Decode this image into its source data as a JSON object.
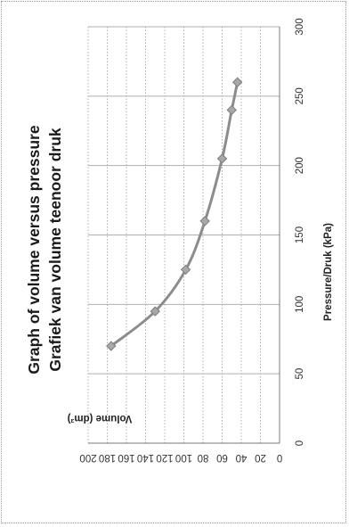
{
  "chart_data": {
    "type": "line",
    "title": "Graph of volume versus pressure",
    "subtitle": "Grafiek van volume teenoor druk",
    "xlabel": "Pressure/Druk (kPa)",
    "ylabel": "Volume (dm³)",
    "xlim": [
      0,
      300
    ],
    "ylim": [
      0,
      200
    ],
    "xticks": [
      "0",
      "50",
      "100",
      "150",
      "200",
      "250",
      "300"
    ],
    "yticks": [
      "0",
      "20",
      "40",
      "60",
      "80",
      "100",
      "120",
      "140",
      "160",
      "180",
      "200"
    ],
    "grid": true,
    "orientation": "rotated 90° counter-clockwise",
    "series": [
      {
        "x": [
          70,
          95,
          125,
          160,
          205,
          240,
          260
        ],
        "y": [
          176,
          130,
          98,
          78,
          60,
          50,
          44
        ]
      }
    ],
    "colors": {
      "line": "#8c8c8c",
      "marker": "#a8a8a8",
      "grid": "#b0b0b0",
      "axis": "#7a7a7a"
    }
  }
}
